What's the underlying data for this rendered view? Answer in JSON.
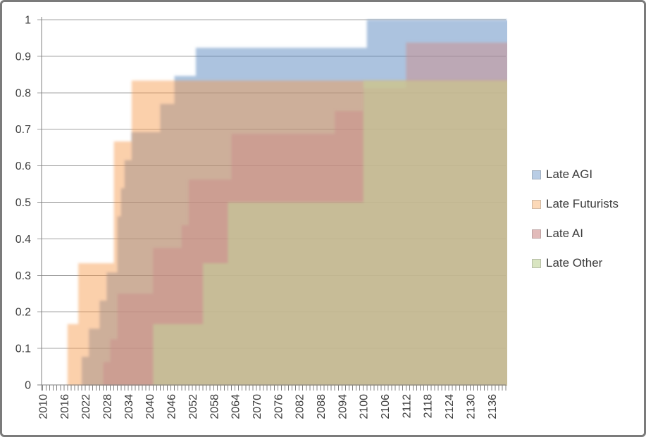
{
  "chart_data": {
    "type": "area",
    "subtype": "overlapping-step-cdf",
    "title": "",
    "x_axis": {
      "label": "",
      "min_year": 2010,
      "max_year": 2140,
      "major_tick_interval": 6,
      "minor_tick_interval": 1,
      "tick_labels": [
        "2010",
        "2016",
        "2022",
        "2028",
        "2034",
        "2040",
        "2046",
        "2052",
        "2058",
        "2064",
        "2070",
        "2076",
        "2082",
        "2088",
        "2094",
        "2100",
        "2106",
        "2112",
        "2118",
        "2124",
        "2130",
        "2136"
      ]
    },
    "y_axis": {
      "label": "",
      "min": 0,
      "max": 1,
      "tick_step": 0.1,
      "tick_labels": [
        "0",
        "0.1",
        "0.2",
        "0.3",
        "0.4",
        "0.5",
        "0.6",
        "0.7",
        "0.8",
        "0.9",
        "1"
      ]
    },
    "gridlines": true,
    "legend_position": "right",
    "series": [
      {
        "name": "Late AGI",
        "legend_swatch": "#b9cde5",
        "fill": "#4f81bd",
        "fill_opacity": 0.48,
        "steps": [
          [
            2021,
            0.0769
          ],
          [
            2023,
            0.1538
          ],
          [
            2026,
            0.2308
          ],
          [
            2028,
            0.3077
          ],
          [
            2031,
            0.4615
          ],
          [
            2032,
            0.5385
          ],
          [
            2033,
            0.6154
          ],
          [
            2035,
            0.6923
          ],
          [
            2043,
            0.7692
          ],
          [
            2047,
            0.8462
          ],
          [
            2053,
            0.9231
          ],
          [
            2101,
            1.0
          ]
        ]
      },
      {
        "name": "Late Futurists",
        "legend_swatch": "#fcd9b8",
        "fill": "#f79646",
        "fill_opacity": 0.45,
        "steps": [
          [
            2017,
            0.1667
          ],
          [
            2020,
            0.3333
          ],
          [
            2030,
            0.6667
          ],
          [
            2035,
            0.8333
          ]
        ]
      },
      {
        "name": "Late AI",
        "legend_swatch": "#e2bbba",
        "fill": "#cc8e8c",
        "fill_opacity": 0.5,
        "steps": [
          [
            2027,
            0.0625
          ],
          [
            2029,
            0.125
          ],
          [
            2031,
            0.25
          ],
          [
            2041,
            0.375
          ],
          [
            2049,
            0.4375
          ],
          [
            2051,
            0.5625
          ],
          [
            2063,
            0.6875
          ],
          [
            2092,
            0.75
          ],
          [
            2100,
            0.8125
          ],
          [
            2112,
            0.9375
          ]
        ]
      },
      {
        "name": "Late Other",
        "legend_swatch": "#d9e5c1",
        "fill": "#c3d69b",
        "fill_opacity": 0.55,
        "steps": [
          [
            2041,
            0.1667
          ],
          [
            2055,
            0.3333
          ],
          [
            2062,
            0.5
          ],
          [
            2100,
            0.8333
          ]
        ]
      }
    ]
  },
  "colors": {
    "background": "#ffffff",
    "frame_border": "#7b7b7b",
    "axis": "#808080",
    "gridline": "#a3a3a3",
    "tick": "#808080",
    "text": "#3d3d3d"
  }
}
